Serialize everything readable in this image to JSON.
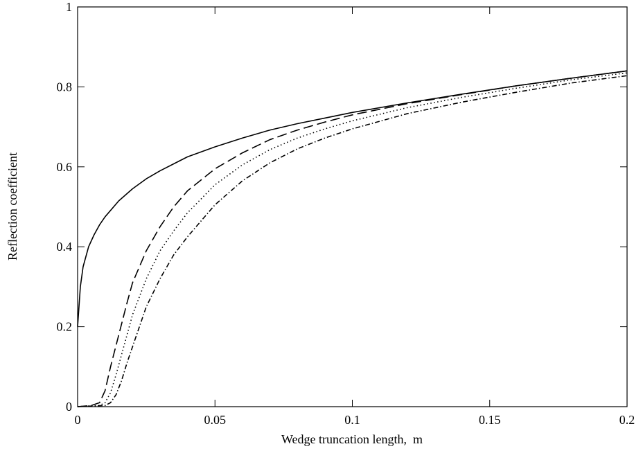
{
  "chart_data": {
    "type": "line",
    "xlabel": "Wedge truncation length,  m",
    "ylabel": "Reflection coefficient",
    "xlim": [
      0,
      0.2
    ],
    "ylim": [
      0,
      1
    ],
    "xticks": [
      0,
      0.05,
      0.1,
      0.15,
      0.2
    ],
    "xtick_labels": [
      "0",
      "0.05",
      "0.1",
      "0.15",
      "0.2"
    ],
    "yticks": [
      0,
      0.2,
      0.4,
      0.6,
      0.8,
      1
    ],
    "ytick_labels": [
      "0",
      "0.2",
      "0.4",
      "0.6",
      "0.8",
      "1"
    ],
    "grid": false,
    "legend": "none",
    "series": [
      {
        "style": "solid",
        "x": [
          0.0,
          0.001,
          0.002,
          0.004,
          0.006,
          0.008,
          0.01,
          0.015,
          0.02,
          0.025,
          0.03,
          0.04,
          0.05,
          0.06,
          0.07,
          0.08,
          0.09,
          0.1,
          0.12,
          0.14,
          0.16,
          0.18,
          0.2
        ],
        "y": [
          0.2,
          0.3,
          0.35,
          0.4,
          0.43,
          0.455,
          0.475,
          0.515,
          0.545,
          0.57,
          0.59,
          0.625,
          0.65,
          0.672,
          0.692,
          0.708,
          0.722,
          0.736,
          0.76,
          0.782,
          0.803,
          0.822,
          0.84
        ]
      },
      {
        "style": "dashed",
        "x": [
          0.0,
          0.005,
          0.008,
          0.01,
          0.012,
          0.015,
          0.018,
          0.02,
          0.025,
          0.03,
          0.035,
          0.04,
          0.05,
          0.06,
          0.07,
          0.08,
          0.09,
          0.1,
          0.12,
          0.14,
          0.16,
          0.18,
          0.2
        ],
        "y": [
          0.0,
          0.003,
          0.01,
          0.04,
          0.1,
          0.18,
          0.26,
          0.31,
          0.39,
          0.45,
          0.5,
          0.54,
          0.595,
          0.635,
          0.668,
          0.692,
          0.712,
          0.73,
          0.758,
          0.781,
          0.803,
          0.822,
          0.84
        ]
      },
      {
        "style": "dotted",
        "x": [
          0.0,
          0.008,
          0.01,
          0.012,
          0.014,
          0.016,
          0.018,
          0.02,
          0.025,
          0.03,
          0.035,
          0.04,
          0.05,
          0.06,
          0.07,
          0.08,
          0.09,
          0.1,
          0.12,
          0.14,
          0.16,
          0.18,
          0.2
        ],
        "y": [
          0.0,
          0.003,
          0.01,
          0.035,
          0.08,
          0.13,
          0.18,
          0.23,
          0.32,
          0.39,
          0.44,
          0.485,
          0.555,
          0.605,
          0.643,
          0.672,
          0.695,
          0.715,
          0.748,
          0.774,
          0.797,
          0.818,
          0.835
        ]
      },
      {
        "style": "dashdot",
        "x": [
          0.0,
          0.01,
          0.012,
          0.014,
          0.016,
          0.018,
          0.02,
          0.022,
          0.025,
          0.03,
          0.035,
          0.04,
          0.05,
          0.06,
          0.07,
          0.08,
          0.09,
          0.1,
          0.12,
          0.14,
          0.16,
          0.18,
          0.2
        ],
        "y": [
          0.0,
          0.003,
          0.01,
          0.03,
          0.065,
          0.11,
          0.15,
          0.19,
          0.25,
          0.32,
          0.38,
          0.425,
          0.505,
          0.565,
          0.61,
          0.645,
          0.672,
          0.695,
          0.733,
          0.762,
          0.787,
          0.81,
          0.828
        ]
      }
    ]
  }
}
